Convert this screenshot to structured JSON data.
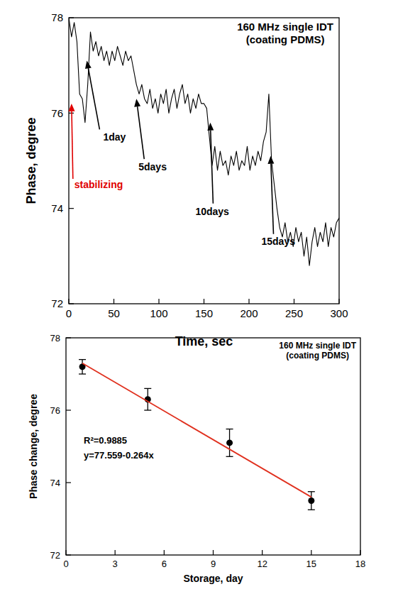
{
  "chart_data": [
    {
      "type": "line",
      "title": "160 MHz single IDT",
      "subtitle": "(coating PDMS)",
      "x_label": "Time, sec",
      "y_label": "Phase, degree",
      "xlim": [
        0,
        300
      ],
      "xticks": [
        0,
        50,
        100,
        150,
        200,
        250,
        300
      ],
      "ylim": [
        72,
        78
      ],
      "yticks": [
        72,
        74,
        76,
        78
      ],
      "grid": false,
      "series": [
        {
          "color": "#000000",
          "x": [
            0,
            3,
            6,
            9,
            12,
            15,
            18,
            21,
            24,
            27,
            30,
            33,
            36,
            39,
            42,
            45,
            48,
            51,
            54,
            57,
            60,
            63,
            66,
            69,
            72,
            75,
            78,
            81,
            84,
            87,
            90,
            93,
            96,
            99,
            102,
            105,
            108,
            111,
            114,
            117,
            120,
            123,
            126,
            129,
            132,
            135,
            138,
            141,
            144,
            147,
            150,
            153,
            156,
            159,
            162,
            165,
            168,
            171,
            174,
            177,
            180,
            183,
            186,
            189,
            192,
            195,
            198,
            201,
            204,
            207,
            210,
            213,
            216,
            219,
            222,
            225,
            228,
            231,
            234,
            237,
            240,
            243,
            246,
            249,
            252,
            255,
            258,
            261,
            264,
            267,
            270,
            273,
            276,
            279,
            282,
            285,
            288,
            291,
            294,
            297,
            300
          ],
          "values": [
            78.0,
            77.6,
            77.9,
            77.5,
            76.4,
            76.3,
            75.8,
            76.6,
            77.7,
            77.3,
            77.5,
            77.2,
            77.4,
            77.1,
            77.3,
            77.0,
            77.3,
            77.1,
            77.4,
            77.2,
            77.0,
            77.3,
            77.1,
            77.2,
            76.9,
            76.6,
            76.4,
            76.6,
            76.3,
            76.2,
            76.5,
            76.1,
            76.3,
            76.0,
            76.4,
            76.2,
            76.5,
            76.0,
            76.3,
            76.5,
            76.1,
            76.4,
            76.6,
            76.2,
            76.4,
            76.0,
            76.3,
            76.1,
            76.4,
            76.2,
            76.2,
            76.1,
            75.5,
            74.9,
            75.3,
            74.8,
            75.2,
            74.9,
            75.0,
            74.7,
            75.1,
            74.9,
            75.2,
            74.8,
            75.0,
            74.9,
            75.3,
            74.8,
            75.1,
            74.9,
            75.2,
            75.0,
            75.4,
            75.6,
            76.4,
            75.0,
            74.5,
            74.0,
            73.6,
            73.4,
            73.7,
            73.3,
            73.5,
            73.2,
            73.6,
            73.3,
            73.5,
            73.0,
            73.4,
            72.8,
            73.3,
            73.6,
            73.2,
            73.5,
            73.3,
            73.7,
            73.2,
            73.6,
            73.4,
            73.7,
            73.8
          ]
        }
      ],
      "annotations": [
        {
          "text": "stabilizing",
          "x": 3,
          "y": 76.2,
          "color": "#e00000"
        },
        {
          "text": "1day",
          "x": 20,
          "y": 77.1,
          "color": "#000000"
        },
        {
          "text": "5days",
          "x": 75,
          "y": 76.3,
          "color": "#000000"
        },
        {
          "text": "10days",
          "x": 157,
          "y": 75.8,
          "color": "#000000"
        },
        {
          "text": "15days",
          "x": 224,
          "y": 75.1,
          "color": "#000000"
        }
      ]
    },
    {
      "type": "scatter",
      "title": "160 MHz single IDT",
      "subtitle": "(coating PDMS)",
      "x_label": "Storage, day",
      "y_label": "Phase change, degree",
      "xlim": [
        0,
        18
      ],
      "xticks": [
        0,
        3,
        6,
        9,
        12,
        15,
        18
      ],
      "ylim": [
        72,
        78
      ],
      "yticks": [
        72,
        74,
        76,
        78
      ],
      "grid": false,
      "series": [
        {
          "type": "scatter",
          "color": "#000000",
          "marker": "circle",
          "x": [
            1,
            5,
            10,
            15
          ],
          "values": [
            77.2,
            76.3,
            75.1,
            73.5
          ],
          "errors": [
            0.2,
            0.3,
            0.38,
            0.25
          ]
        },
        {
          "type": "line",
          "color": "#e0301e",
          "x": [
            1,
            15
          ],
          "values": [
            77.3,
            73.6
          ]
        }
      ],
      "annotations": [
        {
          "text": "R²=0.9885",
          "color": "#000000"
        },
        {
          "text": "y=77.559-0.264x",
          "color": "#000000"
        }
      ]
    }
  ]
}
